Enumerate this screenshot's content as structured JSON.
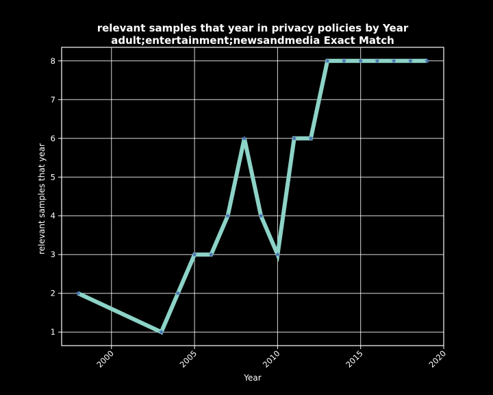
{
  "chart_data": {
    "type": "line",
    "title_line1": "relevant samples that year in privacy policies by Year",
    "title_line2": "adult;entertainment;newsandmedia Exact Match",
    "xlabel": "Year",
    "ylabel": "relevant samples that year",
    "x_ticks": [
      2000,
      2005,
      2010,
      2015,
      2020
    ],
    "y_ticks": [
      1,
      2,
      3,
      4,
      5,
      6,
      7,
      8
    ],
    "xlim": [
      1997.0,
      2020.0
    ],
    "ylim": [
      0.65,
      8.35
    ],
    "grid": true,
    "series": [
      {
        "x": [
          1998,
          2003,
          2004,
          2005,
          2006,
          2007,
          2008,
          2009,
          2010,
          2011,
          2012,
          2013,
          2014,
          2015,
          2016,
          2017,
          2018,
          2019
        ],
        "y": [
          2,
          1,
          2,
          3,
          3,
          4,
          6,
          4,
          3,
          6,
          6,
          8,
          8,
          8,
          8,
          8,
          8,
          8
        ],
        "line_color": "#8dd3c7",
        "marker_color": "#4c72b0",
        "marker": "star"
      }
    ]
  }
}
